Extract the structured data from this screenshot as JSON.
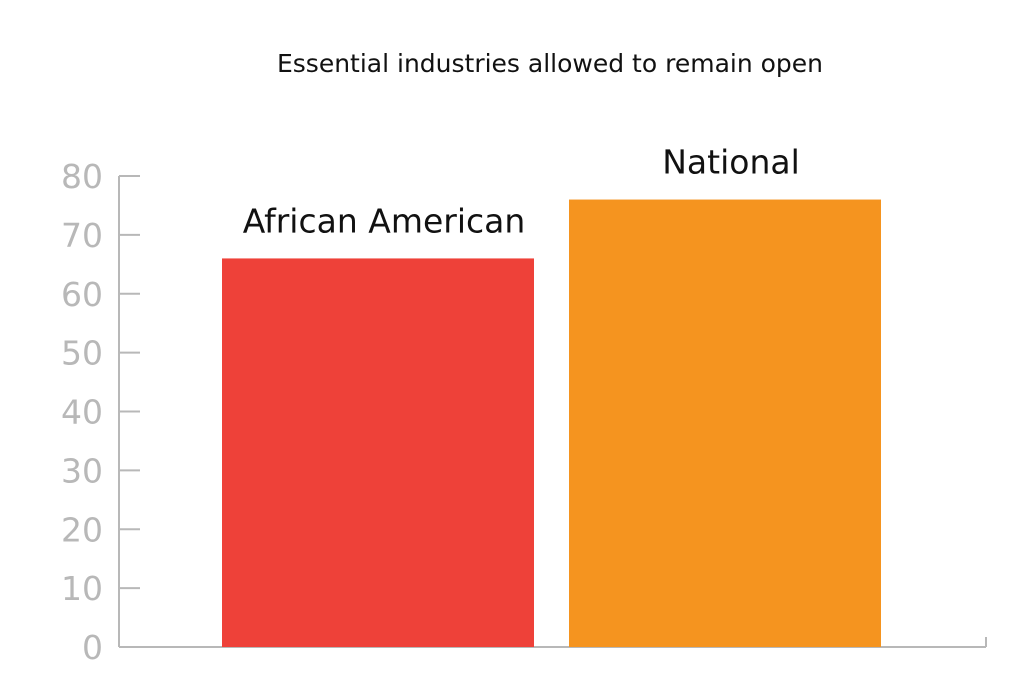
{
  "chart_data": {
    "type": "bar",
    "title": "Essential industries allowed to remain open",
    "categories": [
      "African American",
      "National"
    ],
    "values": [
      66,
      76
    ],
    "colors": [
      "#ee4139",
      "#f5941f"
    ],
    "ylim": [
      0,
      80
    ],
    "yticks": [
      "0",
      "10",
      "20",
      "30",
      "40",
      "50",
      "60",
      "70",
      "80"
    ],
    "xlabel": "",
    "ylabel": "",
    "grid": false,
    "legend": "none",
    "axis_color": "#b8b8b8"
  }
}
